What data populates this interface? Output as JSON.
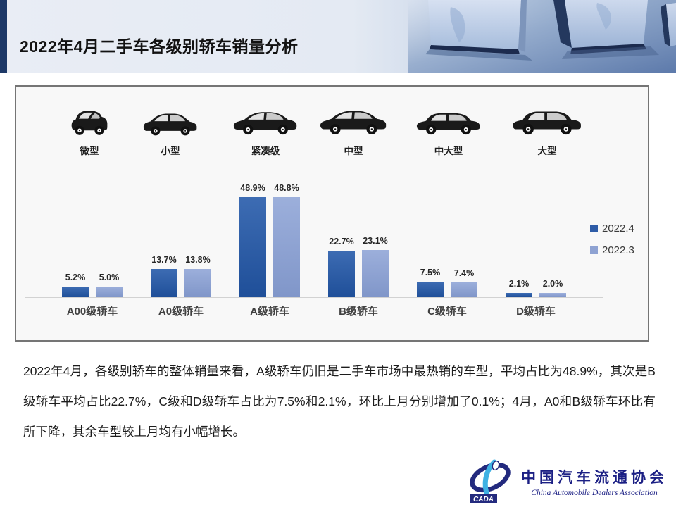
{
  "header": {
    "title": "2022年4月二手车各级别轿车销量分析"
  },
  "car_categories": [
    {
      "label": "微型",
      "icon": "microcar-icon"
    },
    {
      "label": "小型",
      "icon": "hatchback-icon"
    },
    {
      "label": "紧凑级",
      "icon": "compact-sedan-icon"
    },
    {
      "label": "中型",
      "icon": "midsize-sedan-icon"
    },
    {
      "label": "中大型",
      "icon": "mid-large-sedan-icon"
    },
    {
      "label": "大型",
      "icon": "large-sedan-icon"
    }
  ],
  "chart_data": {
    "type": "bar",
    "title": "",
    "categories": [
      "A00级轿车",
      "A0级轿车",
      "A级轿车",
      "B级轿车",
      "C级轿车",
      "D级轿车"
    ],
    "series": [
      {
        "name": "2022.4",
        "color": "#2e5ca7",
        "color_top": "#3d6cb3",
        "color_bottom": "#1f4f99",
        "values": [
          5.2,
          13.7,
          48.9,
          22.7,
          7.5,
          2.1
        ]
      },
      {
        "name": "2022.3",
        "color": "#8ea2d2",
        "color_top": "#9cafdb",
        "color_bottom": "#8096c9",
        "values": [
          5.0,
          13.8,
          48.8,
          23.1,
          7.4,
          2.0
        ]
      }
    ],
    "value_suffix": "%",
    "xlabel": "",
    "ylabel": "",
    "ylim": [
      0,
      55
    ],
    "grid": false,
    "legend_position": "right"
  },
  "analysis_text": "2022年4月，各级别轿车的整体销量来看，A级轿车仍旧是二手车市场中最热销的车型，平均占比为48.9%，其次是B级轿车平均占比22.7%，C级和D级轿车占比为7.5%和2.1%，环比上月分别增加了0.1%；4月，A0和B级轿车环比有所下降，其余车型较上月均有小幅增长。",
  "logo": {
    "acronym": "CADA",
    "cn_name": "中国汽车流通协会",
    "en_name": "China Automobile Dealers Association"
  },
  "colors": {
    "accent_strip": "#1d3867",
    "panel_bg": "#f8f8f8",
    "panel_border": "#757575",
    "logo_navy": "#1b1f84",
    "logo_cyan": "#3fb1e3"
  }
}
